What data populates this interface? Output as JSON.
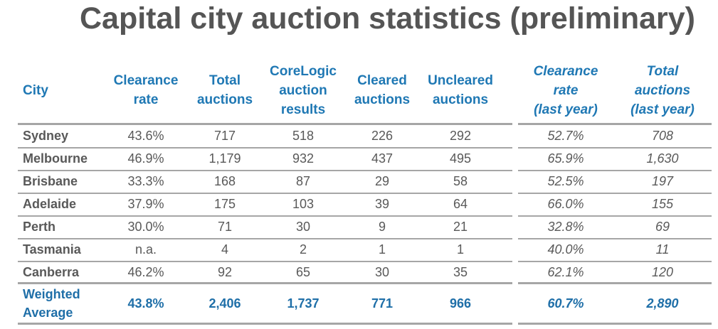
{
  "title": "Capital city auction statistics (preliminary)",
  "table": {
    "header": [
      "City",
      "Clearance\nrate",
      "Total\nauctions",
      "CoreLogic\nauction\nresults",
      "Cleared\nauctions",
      "Uncleared\nauctions",
      "Clearance\nrate\n(last year)",
      "Total\nauctions\n(last year)"
    ],
    "rows": [
      [
        "Sydney",
        "43.6%",
        "717",
        "518",
        "226",
        "292",
        "52.7%",
        "708"
      ],
      [
        "Melbourne",
        "46.9%",
        "1,179",
        "932",
        "437",
        "495",
        "65.9%",
        "1,630"
      ],
      [
        "Brisbane",
        "33.3%",
        "168",
        "87",
        "29",
        "58",
        "52.5%",
        "197"
      ],
      [
        "Adelaide",
        "37.9%",
        "175",
        "103",
        "39",
        "64",
        "66.0%",
        "155"
      ],
      [
        "Perth",
        "30.0%",
        "71",
        "30",
        "9",
        "21",
        "32.8%",
        "69"
      ],
      [
        "Tasmania",
        "n.a.",
        "4",
        "2",
        "1",
        "1",
        "40.0%",
        "11"
      ],
      [
        "Canberra",
        "46.2%",
        "92",
        "65",
        "30",
        "35",
        "62.1%",
        "120"
      ]
    ],
    "footer": [
      "Weighted\nAverage",
      "43.8%",
      "2,406",
      "1,737",
      "771",
      "966",
      "60.7%",
      "2,890"
    ]
  }
}
